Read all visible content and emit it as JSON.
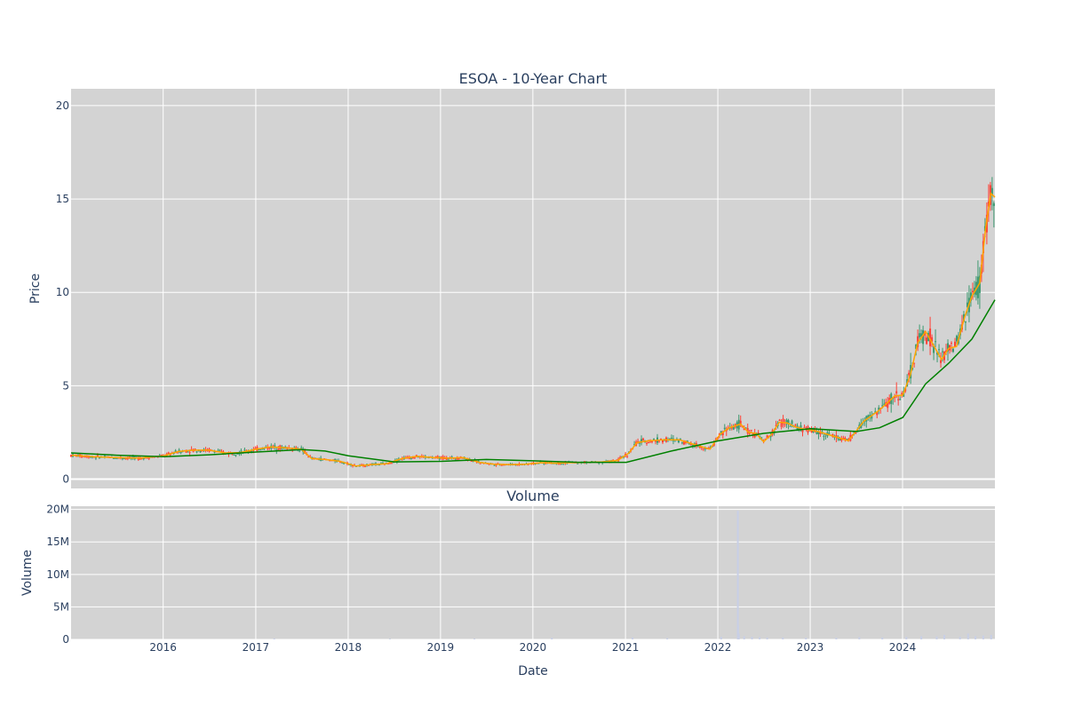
{
  "chart_data": [
    {
      "type": "candlestick",
      "title": "ESOA - 10-Year Chart",
      "ylabel": "Price",
      "ylim": [
        -0.5,
        20.9
      ],
      "y_ticks": [
        0,
        5,
        10,
        15,
        20
      ],
      "x_range": [
        "2015-01-02",
        "2024-12-31"
      ],
      "x_ticks": [
        "2016",
        "2017",
        "2018",
        "2019",
        "2020",
        "2021",
        "2022",
        "2023",
        "2024"
      ],
      "grid": true,
      "legend": "none",
      "up_color": "#3d9970",
      "down_color": "#ff4136",
      "series": [
        {
          "kind": "moving-average-short",
          "color": "#ffa500",
          "points": [
            [
              "2015-01-05",
              1.28
            ],
            [
              "2015-04-01",
              1.2
            ],
            [
              "2015-07-01",
              1.15
            ],
            [
              "2015-10-01",
              1.12
            ],
            [
              "2016-01-04",
              1.25
            ],
            [
              "2016-03-01",
              1.48
            ],
            [
              "2016-05-02",
              1.55
            ],
            [
              "2016-07-01",
              1.55
            ],
            [
              "2016-09-01",
              1.4
            ],
            [
              "2016-11-01",
              1.42
            ],
            [
              "2017-01-03",
              1.6
            ],
            [
              "2017-03-01",
              1.72
            ],
            [
              "2017-05-01",
              1.68
            ],
            [
              "2017-06-30",
              1.6
            ],
            [
              "2017-08-10",
              1.1
            ],
            [
              "2017-10-02",
              1.05
            ],
            [
              "2017-12-01",
              0.95
            ],
            [
              "2018-02-01",
              0.7
            ],
            [
              "2018-04-02",
              0.78
            ],
            [
              "2018-06-01",
              0.82
            ],
            [
              "2018-08-01",
              1.1
            ],
            [
              "2018-10-01",
              1.22
            ],
            [
              "2018-12-03",
              1.15
            ],
            [
              "2019-02-01",
              1.12
            ],
            [
              "2019-04-01",
              1.15
            ],
            [
              "2019-06-03",
              0.9
            ],
            [
              "2019-08-01",
              0.8
            ],
            [
              "2019-10-01",
              0.78
            ],
            [
              "2019-12-02",
              0.8
            ],
            [
              "2020-02-03",
              0.88
            ],
            [
              "2020-04-01",
              0.85
            ],
            [
              "2020-06-01",
              0.88
            ],
            [
              "2020-08-03",
              0.9
            ],
            [
              "2020-10-01",
              0.92
            ],
            [
              "2020-12-01",
              1.0
            ],
            [
              "2021-01-15",
              1.4
            ],
            [
              "2021-02-15",
              1.95
            ],
            [
              "2021-04-01",
              2.05
            ],
            [
              "2021-06-01",
              2.1
            ],
            [
              "2021-08-02",
              2.1
            ],
            [
              "2021-10-01",
              1.85
            ],
            [
              "2021-12-01",
              1.6
            ],
            [
              "2022-01-10",
              2.4
            ],
            [
              "2022-02-15",
              2.75
            ],
            [
              "2022-04-01",
              2.95
            ],
            [
              "2022-05-02",
              2.5
            ],
            [
              "2022-06-01",
              2.45
            ],
            [
              "2022-07-01",
              2.0
            ],
            [
              "2022-08-01",
              2.4
            ],
            [
              "2022-09-01",
              3.05
            ],
            [
              "2022-10-03",
              3.0
            ],
            [
              "2022-11-01",
              2.8
            ],
            [
              "2022-12-01",
              2.7
            ],
            [
              "2023-02-01",
              2.55
            ],
            [
              "2023-04-03",
              2.3
            ],
            [
              "2023-06-01",
              2.05
            ],
            [
              "2023-07-03",
              2.6
            ],
            [
              "2023-08-01",
              3.1
            ],
            [
              "2023-10-02",
              3.7
            ],
            [
              "2023-12-01",
              4.45
            ],
            [
              "2024-01-02",
              4.5
            ],
            [
              "2024-02-01",
              5.6
            ],
            [
              "2024-03-01",
              7.3
            ],
            [
              "2024-04-01",
              7.9
            ],
            [
              "2024-05-01",
              7.2
            ],
            [
              "2024-06-03",
              6.4
            ],
            [
              "2024-07-01",
              7.0
            ],
            [
              "2024-08-01",
              7.1
            ],
            [
              "2024-09-03",
              8.7
            ],
            [
              "2024-10-01",
              9.8
            ],
            [
              "2024-11-01",
              10.5
            ],
            [
              "2024-11-25",
              13.5
            ],
            [
              "2024-12-15",
              15.3
            ],
            [
              "2024-12-31",
              15.1
            ]
          ]
        },
        {
          "kind": "moving-average-long",
          "color": "#008000",
          "points": [
            [
              "2015-01-02",
              1.4
            ],
            [
              "2015-07-01",
              1.28
            ],
            [
              "2016-01-04",
              1.2
            ],
            [
              "2016-07-01",
              1.3
            ],
            [
              "2017-01-03",
              1.45
            ],
            [
              "2017-07-03",
              1.58
            ],
            [
              "2017-10-02",
              1.5
            ],
            [
              "2018-01-02",
              1.25
            ],
            [
              "2018-07-02",
              0.92
            ],
            [
              "2019-01-02",
              0.95
            ],
            [
              "2019-07-01",
              1.05
            ],
            [
              "2020-01-02",
              0.98
            ],
            [
              "2020-07-01",
              0.9
            ],
            [
              "2021-01-04",
              0.9
            ],
            [
              "2021-07-01",
              1.5
            ],
            [
              "2022-01-03",
              2.05
            ],
            [
              "2022-07-01",
              2.45
            ],
            [
              "2023-01-03",
              2.7
            ],
            [
              "2023-07-03",
              2.55
            ],
            [
              "2023-10-02",
              2.75
            ],
            [
              "2024-01-02",
              3.3
            ],
            [
              "2024-04-01",
              5.1
            ],
            [
              "2024-07-01",
              6.2
            ],
            [
              "2024-10-01",
              7.5
            ],
            [
              "2024-12-31",
              9.6
            ]
          ]
        }
      ]
    },
    {
      "type": "bar",
      "title": "Volume",
      "xlabel": "Date",
      "ylabel": "Volume",
      "ylim": [
        0,
        20500000
      ],
      "y_ticks": [
        0,
        5000000,
        10000000,
        15000000,
        20000000
      ],
      "y_tick_labels": [
        "0",
        "5M",
        "10M",
        "15M",
        "20M"
      ],
      "grid": true,
      "color": "#c8cfe6",
      "bars": [
        [
          "2017-03-15",
          150000
        ],
        [
          "2018-06-15",
          100000
        ],
        [
          "2019-05-15",
          120000
        ],
        [
          "2020-03-16",
          250000
        ],
        [
          "2021-01-29",
          300000
        ],
        [
          "2021-06-15",
          200000
        ],
        [
          "2022-01-14",
          400000
        ],
        [
          "2022-03-21",
          19800000
        ],
        [
          "2022-03-22",
          2200000
        ],
        [
          "2022-03-25",
          900000
        ],
        [
          "2022-04-15",
          500000
        ],
        [
          "2022-05-16",
          400000
        ],
        [
          "2022-06-15",
          350000
        ],
        [
          "2022-07-15",
          300000
        ],
        [
          "2022-09-15",
          300000
        ],
        [
          "2022-12-15",
          250000
        ],
        [
          "2023-04-14",
          250000
        ],
        [
          "2023-07-14",
          350000
        ],
        [
          "2023-10-13",
          300000
        ],
        [
          "2024-01-16",
          400000
        ],
        [
          "2024-03-15",
          500000
        ],
        [
          "2024-05-15",
          450000
        ],
        [
          "2024-06-14",
          700000
        ],
        [
          "2024-08-15",
          400000
        ],
        [
          "2024-09-16",
          900000
        ],
        [
          "2024-10-15",
          500000
        ],
        [
          "2024-11-15",
          600000
        ],
        [
          "2024-12-16",
          700000
        ]
      ]
    }
  ]
}
